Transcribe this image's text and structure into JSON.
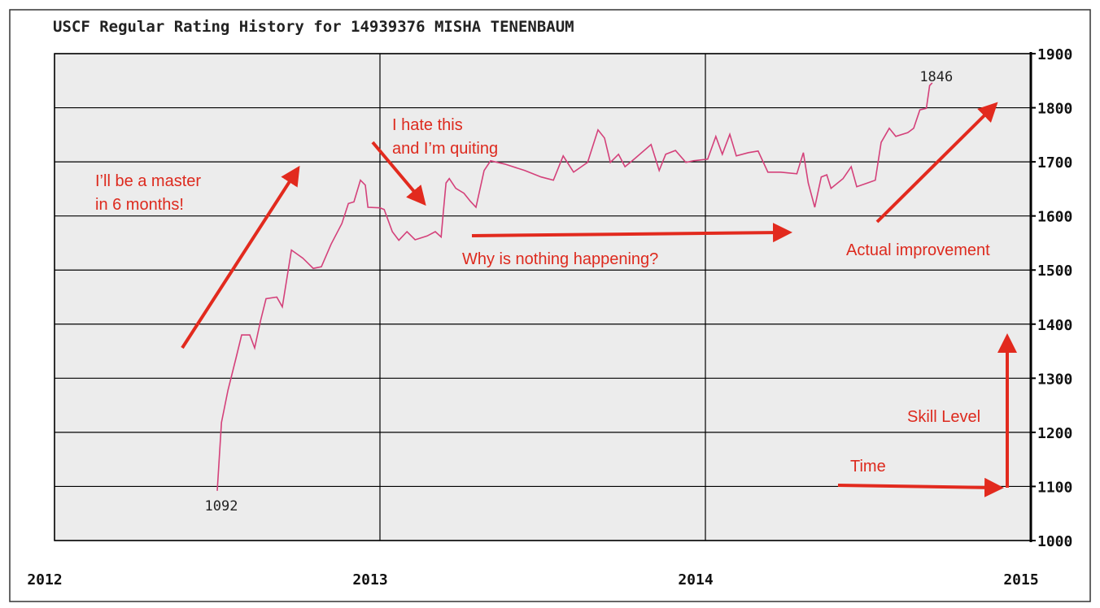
{
  "chart_data": {
    "type": "line",
    "title": "USCF Regular Rating History for 14939376 MISHA TENENBAUM",
    "xlim": [
      2012,
      2015
    ],
    "xticks": [
      2012,
      2013,
      2014,
      2015
    ],
    "ylim": [
      1000,
      1900
    ],
    "yticks": [
      1000,
      1100,
      1200,
      1300,
      1400,
      1500,
      1600,
      1700,
      1800,
      1900
    ],
    "grid": true,
    "series": [
      {
        "color": "#d4417a",
        "x": [
          2012.5,
          2012.513,
          2012.533,
          2012.558,
          2012.575,
          2012.6,
          2012.615,
          2012.633,
          2012.65,
          2012.683,
          2012.7,
          2012.728,
          2012.763,
          2012.795,
          2012.82,
          2012.85,
          2012.883,
          2012.903,
          2012.92,
          2012.94,
          2012.955,
          2012.963,
          2013.0,
          2013.013,
          2013.038,
          2013.058,
          2013.083,
          2013.108,
          2013.145,
          2013.17,
          2013.188,
          2013.195,
          2013.203,
          2013.213,
          2013.233,
          2013.258,
          2013.278,
          2013.295,
          2013.32,
          2013.34,
          2013.383,
          2013.445,
          2013.495,
          2013.533,
          2013.563,
          2013.595,
          2013.638,
          2013.67,
          2013.69,
          2013.708,
          2013.733,
          2013.753,
          2013.783,
          2013.833,
          2013.858,
          2013.878,
          2013.908,
          2013.94,
          2013.963,
          2014.007,
          2014.032,
          2014.052,
          2014.075,
          2014.095,
          2014.132,
          2014.162,
          2014.192,
          2014.231,
          2014.281,
          2014.301,
          2014.316,
          2014.336,
          2014.356,
          2014.373,
          2014.386,
          2014.423,
          2014.448,
          2014.465,
          2014.498,
          2014.522,
          2014.54,
          2014.565,
          2014.585,
          2014.622,
          2014.64,
          2014.659,
          2014.679,
          2014.689,
          2014.697
        ],
        "values": [
          1092,
          1218,
          1278,
          1338,
          1380,
          1380,
          1356,
          1406,
          1447,
          1450,
          1432,
          1537,
          1522,
          1503,
          1506,
          1548,
          1586,
          1623,
          1626,
          1666,
          1657,
          1616,
          1615,
          1612,
          1571,
          1555,
          1571,
          1556,
          1563,
          1571,
          1561,
          1609,
          1661,
          1669,
          1651,
          1642,
          1627,
          1616,
          1684,
          1702,
          1696,
          1684,
          1672,
          1666,
          1711,
          1681,
          1699,
          1759,
          1744,
          1699,
          1714,
          1691,
          1706,
          1732,
          1684,
          1714,
          1721,
          1699,
          1702,
          1705,
          1747,
          1714,
          1751,
          1711,
          1717,
          1720,
          1681,
          1681,
          1678,
          1717,
          1661,
          1616,
          1672,
          1676,
          1651,
          1669,
          1691,
          1654,
          1661,
          1666,
          1736,
          1762,
          1747,
          1754,
          1762,
          1796,
          1799,
          1841,
          1846
        ]
      }
    ],
    "annotations": [
      {
        "lines": [
          "I’ll be a master",
          "in 6 months!"
        ]
      },
      {
        "lines": [
          "I hate this",
          "and I’m quiting"
        ]
      },
      {
        "lines": [
          "Why is nothing happening?"
        ]
      },
      {
        "lines": [
          "Actual improvement"
        ]
      },
      {
        "lines": [
          "Skill Level"
        ]
      },
      {
        "lines": [
          "Time"
        ]
      }
    ]
  }
}
